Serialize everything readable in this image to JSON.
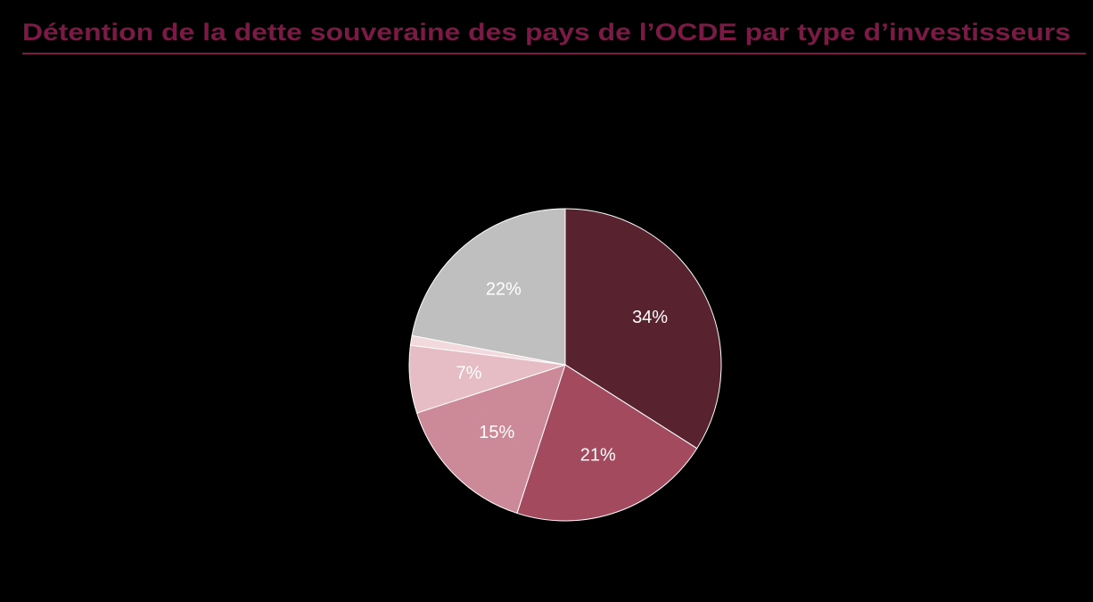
{
  "chart_data": {
    "type": "pie",
    "title": "Détention de la dette souveraine des pays de l’OCDE par type d’investisseurs",
    "values": [
      34,
      21,
      15,
      7,
      1,
      22
    ],
    "value_labels": [
      "34%",
      "21%",
      "15%",
      "7%",
      null,
      "22%"
    ],
    "colors": [
      "#58232f",
      "#a34a5e",
      "#cc8a98",
      "#e6bcc5",
      "#f2d9de",
      "#bfbfbf"
    ]
  }
}
